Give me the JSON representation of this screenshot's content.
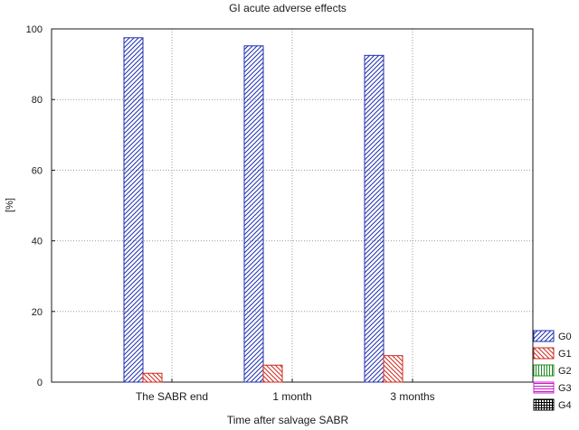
{
  "chart_data": {
    "type": "bar",
    "title": "GI acute adverse effects",
    "xlabel": "Time after salvage SABR",
    "ylabel": "[%]",
    "categories": [
      "The SABR end",
      "1 month",
      "3 months"
    ],
    "ylim": [
      0,
      100
    ],
    "yticks": [
      0,
      20,
      40,
      60,
      80,
      100
    ],
    "grid": true,
    "legend_position": "bottom-right, outside plot",
    "series": [
      {
        "name": "G0",
        "values": [
          97.5,
          95.2,
          92.5
        ],
        "color": "#1f2fb0",
        "pattern": "diagonal-up"
      },
      {
        "name": "G1",
        "values": [
          2.5,
          4.8,
          7.5
        ],
        "color": "#cc2a1e",
        "pattern": "diagonal-down"
      },
      {
        "name": "G2",
        "values": [
          0,
          0,
          0
        ],
        "color": "#1e8a1e",
        "pattern": "vertical"
      },
      {
        "name": "G3",
        "values": [
          0,
          0,
          0
        ],
        "color": "#c81ec8",
        "pattern": "horizontal"
      },
      {
        "name": "G4",
        "values": [
          0,
          0,
          0
        ],
        "color": "#000000",
        "pattern": "grid"
      }
    ]
  }
}
